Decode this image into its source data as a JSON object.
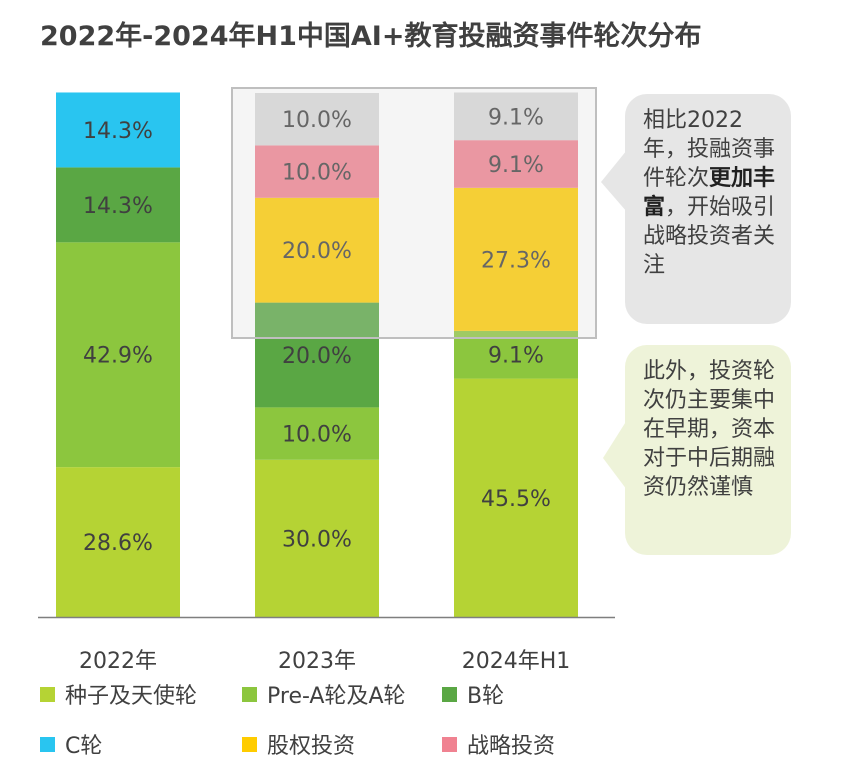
{
  "title": "2022年-2024年H1中国AI+教育投融资事件轮次分布",
  "colors": {
    "seed": "#b5d334",
    "prea": "#8cc63e",
    "b": "#5aa744",
    "c": "#29c5f0",
    "equity": "#ffcc00",
    "strategic": "#f08291",
    "other": "#d9d9d9"
  },
  "chart_data": {
    "type": "bar",
    "stacked": true,
    "unit": "%",
    "title": "2022年-2024年H1中国AI+教育投融资事件轮次分布",
    "categories": [
      "2022年",
      "2023年",
      "2024年H1"
    ],
    "ylim": [
      0,
      100
    ],
    "series": [
      {
        "name": "种子及天使轮",
        "key": "seed",
        "values": [
          28.6,
          30.0,
          45.5
        ],
        "labels": [
          "28.6%",
          "30.0%",
          "45.5%"
        ]
      },
      {
        "name": "Pre-A轮及A轮",
        "key": "prea",
        "values": [
          42.9,
          10.0,
          9.1
        ],
        "labels": [
          "42.9%",
          "10.0%",
          "9.1%"
        ]
      },
      {
        "name": "B轮",
        "key": "b",
        "values": [
          14.3,
          20.0,
          0
        ],
        "labels": [
          "14.3%",
          "20.0%",
          ""
        ]
      },
      {
        "name": "C轮",
        "key": "c",
        "values": [
          14.3,
          0,
          0
        ],
        "labels": [
          "14.3%",
          "",
          ""
        ]
      },
      {
        "name": "股权投资",
        "key": "equity",
        "values": [
          0,
          20.0,
          27.3
        ],
        "labels": [
          "",
          "20.0%",
          "27.3%"
        ]
      },
      {
        "name": "战略投资",
        "key": "strategic",
        "values": [
          0,
          10.0,
          9.1
        ],
        "labels": [
          "",
          "10.0%",
          "9.1%"
        ]
      },
      {
        "name": "",
        "key": "other",
        "values": [
          0,
          10.0,
          9.1
        ],
        "labels": [
          "",
          "10.0%",
          "9.1%"
        ]
      }
    ],
    "legend": [
      "种子及天使轮",
      "Pre-A轮及A轮",
      "B轮",
      "C轮",
      "股权投资",
      "战略投资"
    ]
  },
  "callouts": {
    "top": {
      "text_a": "相比2022年，投融资事件轮次",
      "bold": "更加丰富",
      "text_b": "，开始吸引战略投资者关注"
    },
    "bottom": {
      "text": "此外，投资轮次仍主要集中在早期，资本对于中后期融资仍然谨慎"
    }
  }
}
